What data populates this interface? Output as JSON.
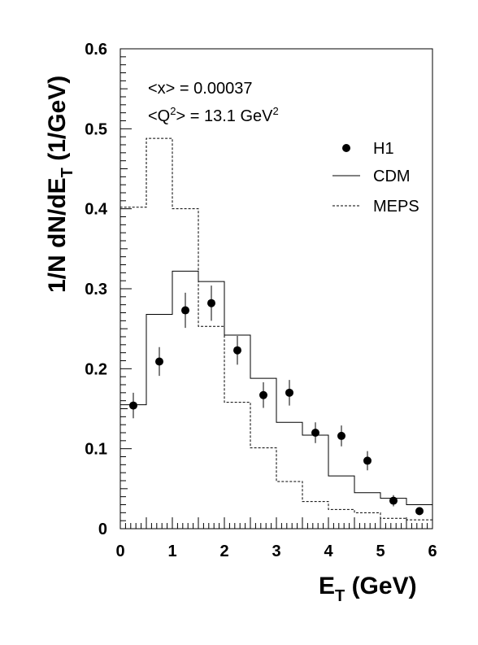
{
  "chart_data": {
    "type": "histogram",
    "xlabel": "E",
    "xlabel_sub": "T",
    "xlabel_rest": " (GeV)",
    "ylabel": "1/N dN/dE",
    "ylabel_sub": "T",
    "ylabel_rest": " (1/GeV)",
    "xlim": [
      0,
      6
    ],
    "ylim": [
      0,
      0.6
    ],
    "x_ticks": [
      0,
      1,
      2,
      3,
      4,
      5,
      6
    ],
    "y_ticks": [
      0,
      0.1,
      0.2,
      0.3,
      0.4,
      0.5,
      0.6
    ],
    "x_tick_labels": [
      "0",
      "1",
      "2",
      "3",
      "4",
      "5",
      "6"
    ],
    "y_tick_labels": [
      "0",
      "0.1",
      "0.2",
      "0.3",
      "0.4",
      "0.5",
      "0.6"
    ],
    "annotations": [
      {
        "text": "<x> = 0.00037"
      },
      {
        "text_before": "<Q",
        "sup": "2",
        "text_after": "> = 13.1 GeV",
        "sup2": "2"
      }
    ],
    "legend": {
      "placement": "top-right",
      "entries": [
        "H1",
        "CDM",
        "MEPS"
      ]
    },
    "bin_edges": [
      0,
      0.5,
      1,
      1.5,
      2,
      2.5,
      3,
      3.5,
      4,
      4.5,
      5,
      5.5,
      6
    ],
    "series": [
      {
        "name": "H1",
        "style": "points",
        "x": [
          0.25,
          0.75,
          1.25,
          1.75,
          2.25,
          2.75,
          3.25,
          3.75,
          4.25,
          4.75,
          5.25,
          5.75
        ],
        "y": [
          0.154,
          0.209,
          0.273,
          0.282,
          0.223,
          0.167,
          0.17,
          0.12,
          0.116,
          0.085,
          0.035,
          0.022
        ],
        "err": [
          0.016,
          0.018,
          0.022,
          0.022,
          0.018,
          0.016,
          0.016,
          0.013,
          0.013,
          0.012,
          0.007,
          0.005
        ]
      },
      {
        "name": "CDM",
        "style": "solid-step",
        "values": [
          0.155,
          0.268,
          0.322,
          0.309,
          0.242,
          0.188,
          0.133,
          0.117,
          0.066,
          0.045,
          0.038,
          0.03
        ]
      },
      {
        "name": "MEPS",
        "style": "dashed-step",
        "values": [
          0.402,
          0.488,
          0.4,
          0.253,
          0.158,
          0.101,
          0.059,
          0.034,
          0.024,
          0.02,
          0.013,
          0.011
        ]
      }
    ]
  }
}
